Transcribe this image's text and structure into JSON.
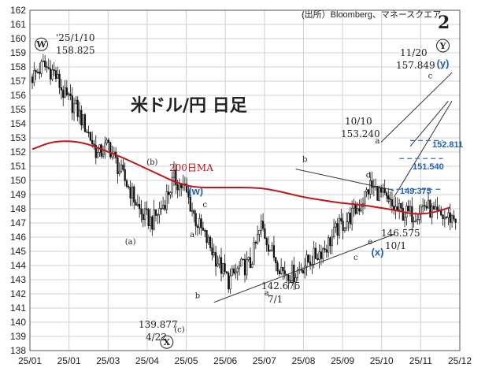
{
  "source_text": "(出所）Bloomberg、マネースクエア",
  "chart_title": "米ドル/円 日足",
  "corner_label": "2",
  "ma_label": "200日MA",
  "colors": {
    "candle": "#111111",
    "ma": "#c0161b",
    "wave_blue": "#1f5fb4",
    "dash_blue": "#3a6fc4",
    "grid": "#d0d0d0",
    "channel": "#333333"
  },
  "chart_data": {
    "type": "candlestick",
    "title": "米ドル/円 日足",
    "x_ticks": [
      "25/01",
      "25/01",
      "25/03",
      "25/04",
      "25/05",
      "25/06",
      "25/07",
      "25/08",
      "25/09",
      "25/10",
      "25/11",
      "25/12"
    ],
    "ylim": [
      138,
      162
    ],
    "y_ticks": [
      138,
      139,
      140,
      141,
      142,
      143,
      144,
      145,
      146,
      147,
      148,
      149,
      150,
      151,
      152,
      153,
      154,
      155,
      156,
      157,
      158,
      159,
      160,
      161,
      162
    ],
    "grid": "horizontal and vertical",
    "series": [
      {
        "name": "200日MA",
        "type": "line",
        "x": [
          0,
          10,
          20,
          30,
          40,
          50,
          60,
          70,
          80,
          90,
          100,
          110,
          120,
          130,
          140,
          150,
          160,
          170,
          180,
          190,
          200,
          210,
          220,
          230
        ],
        "values": [
          152.2,
          152.7,
          152.8,
          152.6,
          152.1,
          151.6,
          151.0,
          150.4,
          149.8,
          149.5,
          149.5,
          149.5,
          149.5,
          149.4,
          149.1,
          148.8,
          148.6,
          148.4,
          148.3,
          148.1,
          147.9,
          147.6,
          147.7,
          148.1
        ]
      },
      {
        "name": "daily",
        "type": "ohlc",
        "index": [
          0,
          6,
          12,
          18,
          24,
          30,
          36,
          42,
          48,
          54,
          60,
          66,
          72,
          78,
          84,
          90,
          96,
          102,
          108,
          114,
          120,
          126,
          132,
          138,
          144,
          150,
          156,
          162,
          168,
          174,
          180,
          186,
          192,
          198,
          204,
          210,
          216,
          222,
          228
        ],
        "close": [
          157.3,
          158.1,
          157.6,
          155.9,
          155.1,
          153.6,
          151.8,
          152.5,
          150.7,
          149.3,
          147.6,
          147.1,
          148.3,
          150.1,
          149.4,
          147.2,
          145.8,
          144.3,
          142.9,
          143.8,
          144.1,
          146.8,
          144.9,
          143.6,
          143.4,
          144.1,
          144.7,
          145.4,
          146.6,
          147.3,
          148.2,
          149.6,
          149.0,
          148.1,
          147.7,
          147.6,
          148.3,
          147.5,
          147.4
        ]
      }
    ],
    "annotations": [
      {
        "text": "'25/1/10",
        "value": 158.825
      },
      {
        "text": "158.825"
      },
      {
        "text": "139.877",
        "value": 139.877
      },
      {
        "text": "4/22"
      },
      {
        "text": "142.675",
        "value": 142.675
      },
      {
        "text": "7/1"
      },
      {
        "text": "146.575",
        "value": 146.575
      },
      {
        "text": "10/1"
      },
      {
        "text": "10/10"
      },
      {
        "text": "153.240",
        "value": 153.24
      },
      {
        "text": "11/20"
      },
      {
        "text": "157.849",
        "value": 157.849
      },
      {
        "text": "152.811",
        "value": 152.811
      },
      {
        "text": "151.540",
        "value": 151.54
      },
      {
        "text": "149.375",
        "value": 149.375
      }
    ],
    "wave_labels": {
      "circled": [
        "W",
        "X",
        "Y"
      ],
      "blue": [
        "(w)",
        "(x)",
        "(y)"
      ],
      "small": [
        "(a)",
        "(b)",
        "(c)",
        "a",
        "b",
        "c",
        "d",
        "e"
      ]
    }
  }
}
